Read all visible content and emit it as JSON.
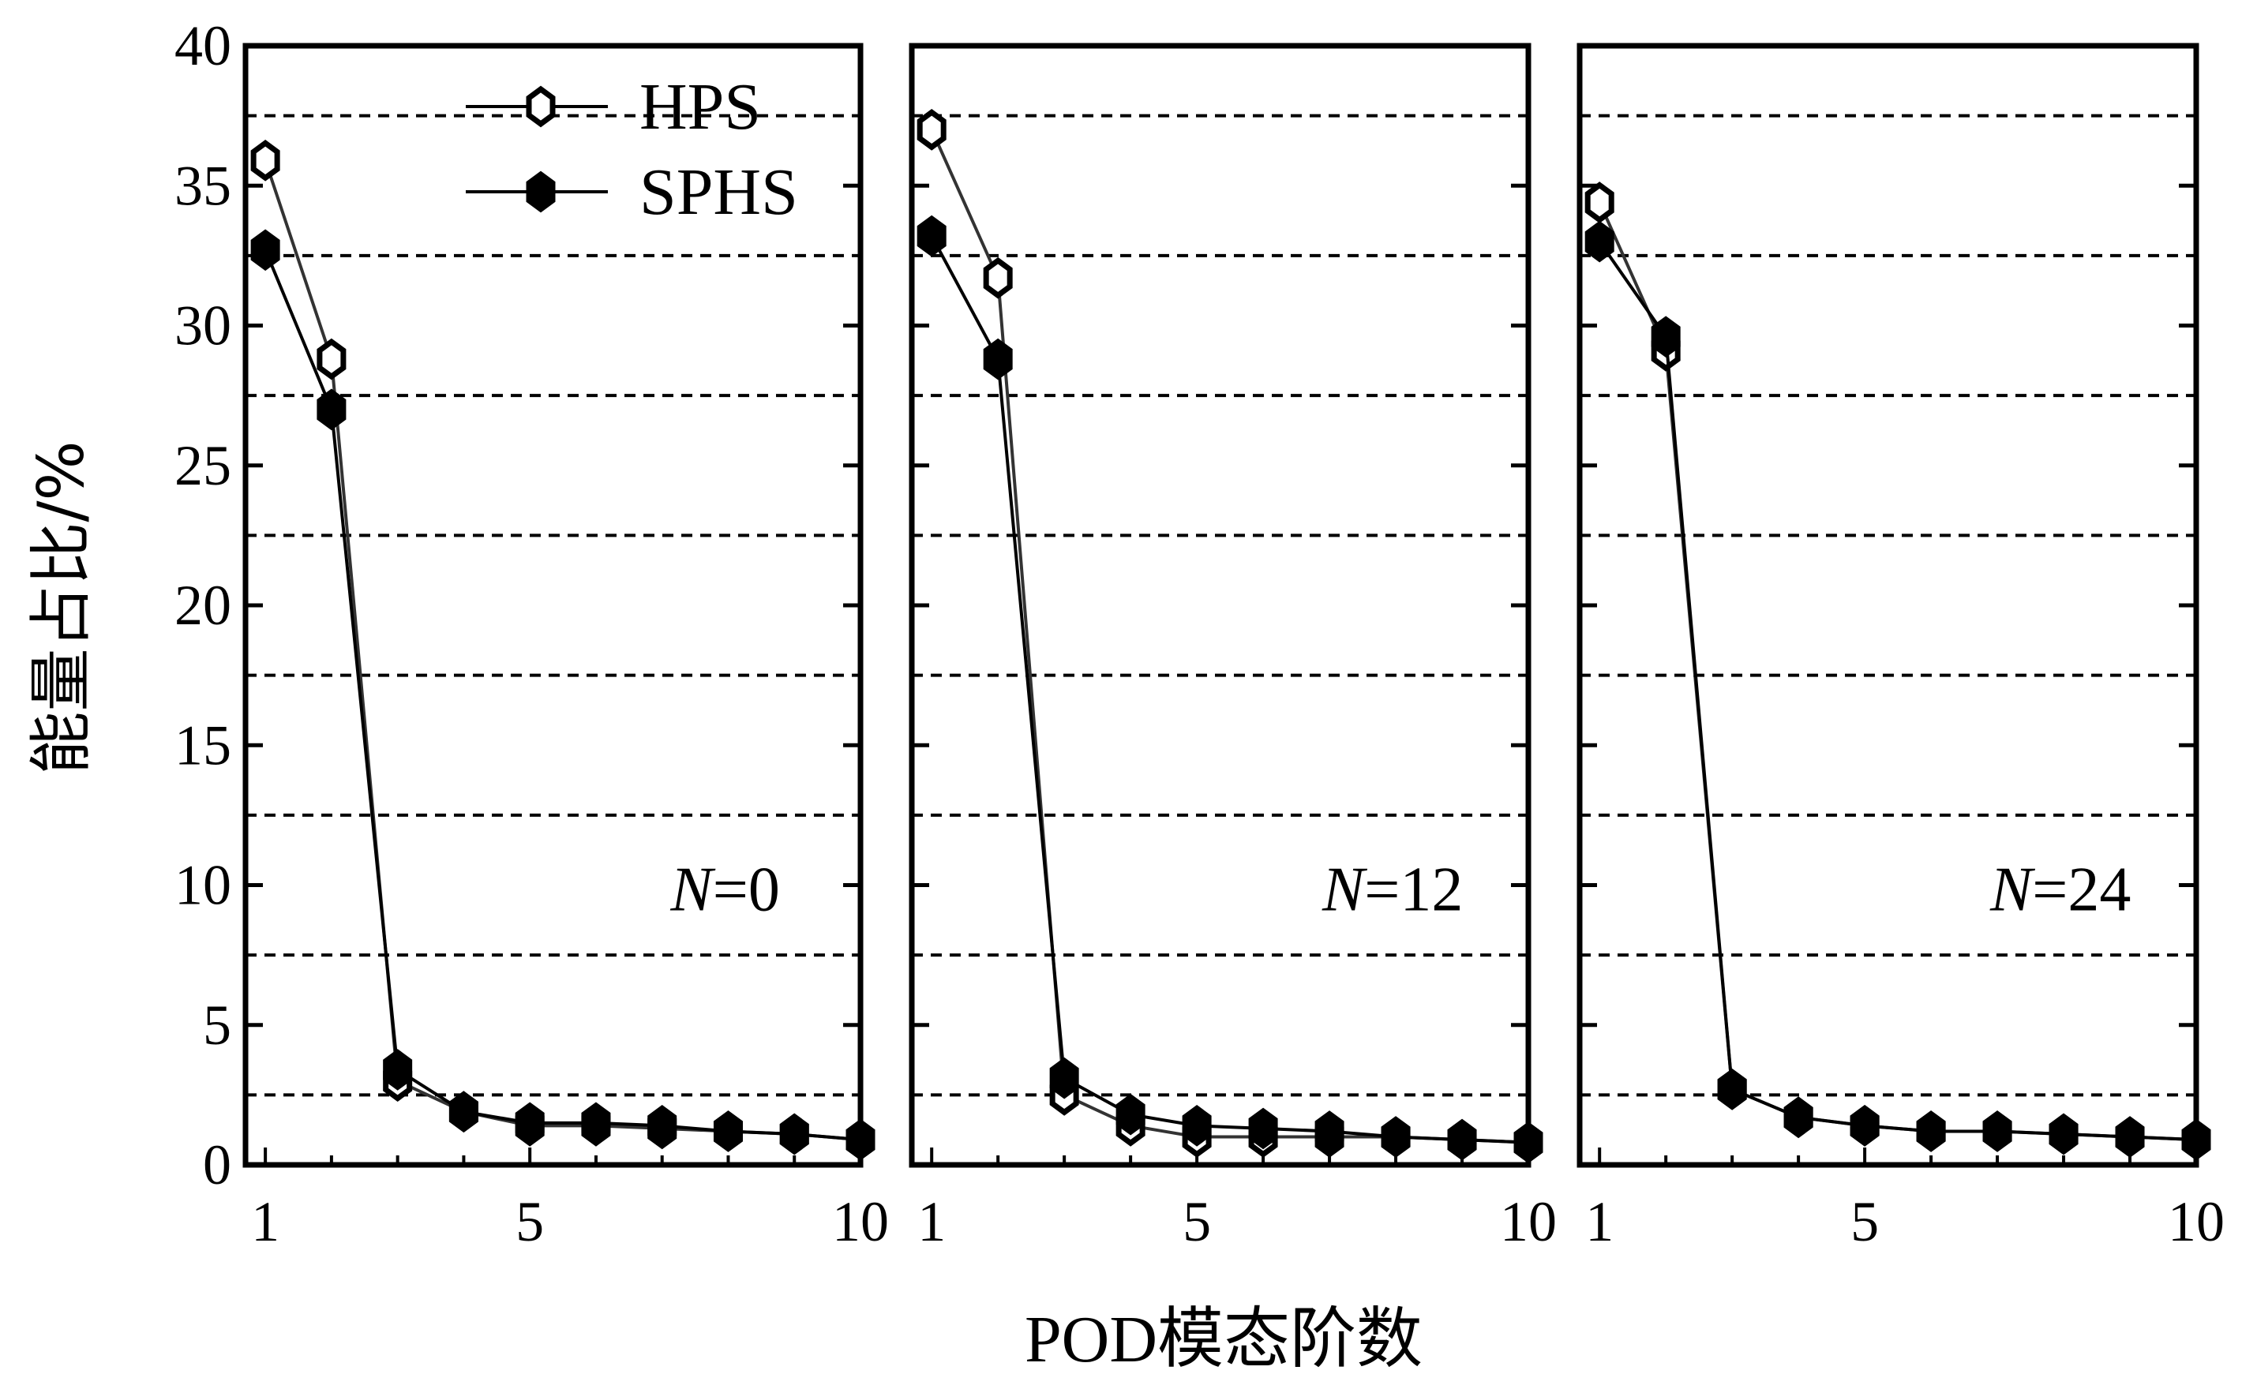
{
  "chart_data": {
    "type": "line",
    "ylabel": "能量占比/%",
    "xlabel": "POD模态阶数",
    "ylim": [
      0,
      40
    ],
    "yticks": [
      0,
      5,
      10,
      15,
      20,
      25,
      30,
      35,
      40
    ],
    "xlim": [
      0.7,
      10
    ],
    "xticks": [
      1,
      5,
      10
    ],
    "grid": "dashed horizontal at 2.5, 7.5, ..., 37.5",
    "gridlines": [
      2.5,
      7.5,
      12.5,
      17.5,
      22.5,
      27.5,
      32.5,
      37.5
    ],
    "legend": {
      "placement": "top-right (first panel)",
      "entries": [
        {
          "name": "HPS",
          "marker": "open hexagon"
        },
        {
          "name": "SPHS",
          "marker": "filled hexagon"
        }
      ]
    },
    "x": [
      1,
      2,
      3,
      4,
      5,
      6,
      7,
      8,
      9,
      10
    ],
    "panels": [
      {
        "label_italic": "N",
        "label_rest": "=0",
        "series": [
          {
            "name": "HPS",
            "values": [
              35.9,
              28.8,
              3.0,
              1.9,
              1.4,
              1.4,
              1.3,
              1.2,
              1.1,
              0.9
            ]
          },
          {
            "name": "SPHS",
            "values": [
              32.7,
              27.0,
              3.4,
              1.9,
              1.5,
              1.5,
              1.4,
              1.2,
              1.1,
              0.9
            ]
          }
        ]
      },
      {
        "label_italic": "N",
        "label_rest": "=12",
        "series": [
          {
            "name": "HPS",
            "values": [
              37.0,
              31.7,
              2.5,
              1.4,
              1.0,
              1.0,
              1.0,
              1.0,
              0.9,
              0.8
            ]
          },
          {
            "name": "SPHS",
            "values": [
              33.2,
              28.8,
              3.1,
              1.8,
              1.4,
              1.3,
              1.2,
              1.0,
              0.9,
              0.8
            ]
          }
        ]
      },
      {
        "label_italic": "N",
        "label_rest": "=24",
        "series": [
          {
            "name": "HPS",
            "values": [
              34.4,
              29.1,
              2.7,
              1.7,
              1.4,
              1.2,
              1.2,
              1.1,
              1.0,
              0.9
            ]
          },
          {
            "name": "SPHS",
            "values": [
              33.0,
              29.6,
              2.7,
              1.7,
              1.4,
              1.2,
              1.2,
              1.1,
              1.0,
              0.9
            ]
          }
        ]
      }
    ],
    "colors": {
      "line": "#000000",
      "hps_fill": "#ffffff",
      "sphs_fill": "#000000"
    }
  }
}
